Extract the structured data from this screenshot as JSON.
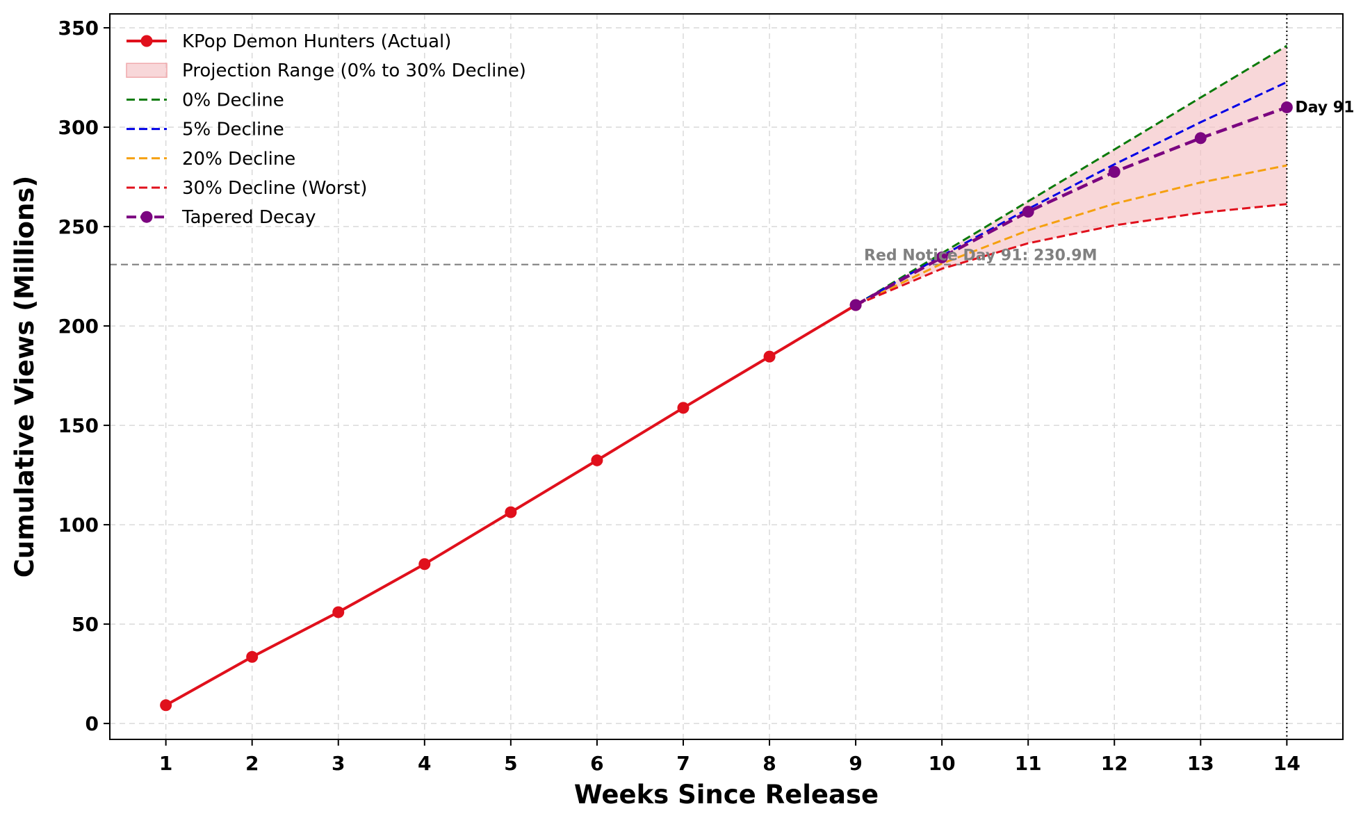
{
  "chart_data": {
    "type": "line",
    "xlabel": "Weeks Since Release",
    "ylabel": "Cumulative Views (Millions)",
    "xlim": [
      0.35,
      14.65
    ],
    "ylim": [
      -8,
      357
    ],
    "x_ticks": [
      1,
      2,
      3,
      4,
      5,
      6,
      7,
      8,
      9,
      10,
      11,
      12,
      13,
      14
    ],
    "y_ticks": [
      0,
      50,
      100,
      150,
      200,
      250,
      300,
      350
    ],
    "grid": true,
    "legend_position": "top-left",
    "series": [
      {
        "name": "KPop Demon Hunters (Actual)",
        "style": "solid-marker",
        "color": "#e0101c",
        "x": [
          1,
          2,
          3,
          4,
          5,
          6,
          7,
          8,
          9
        ],
        "values": [
          9.2,
          33.5,
          56.0,
          80.2,
          106.3,
          132.4,
          158.8,
          184.6,
          210.5
        ]
      },
      {
        "name": "0% Decline",
        "style": "dashed",
        "color": "#0b7a0b",
        "x": [
          9,
          10,
          11,
          12,
          13,
          14
        ],
        "values": [
          210.5,
          236.6,
          262.7,
          288.8,
          314.9,
          341.0
        ]
      },
      {
        "name": "5% Decline",
        "style": "dashed",
        "color": "#0000e6",
        "x": [
          9,
          10,
          11,
          12,
          13,
          14
        ],
        "values": [
          210.5,
          235.3,
          258.9,
          281.3,
          302.5,
          322.7
        ]
      },
      {
        "name": "20% Decline",
        "style": "dashed",
        "color": "#f5a00f",
        "x": [
          9,
          10,
          11,
          12,
          13,
          14
        ],
        "values": [
          210.5,
          231.4,
          248.1,
          261.5,
          272.2,
          280.8
        ]
      },
      {
        "name": "30% Decline (Worst)",
        "style": "dashed",
        "color": "#e0101c",
        "x": [
          9,
          10,
          11,
          12,
          13,
          14
        ],
        "values": [
          210.5,
          228.8,
          241.6,
          250.6,
          256.9,
          261.3
        ]
      },
      {
        "name": "Tapered Decay",
        "style": "dashed-marker",
        "color": "#7b0580",
        "x": [
          9,
          10,
          11,
          12,
          13,
          14
        ],
        "values": [
          210.5,
          234.5,
          257.5,
          277.5,
          294.5,
          310.0
        ]
      }
    ],
    "projection_range": {
      "name": "Projection Range (0% to 30% Decline)",
      "color": "#f4c2c4",
      "x": [
        9,
        10,
        11,
        12,
        13,
        14
      ],
      "upper": [
        210.5,
        236.6,
        262.7,
        288.8,
        314.9,
        341.0
      ],
      "lower": [
        210.5,
        228.8,
        241.6,
        250.6,
        256.9,
        261.3
      ]
    },
    "reference_line": {
      "y": 230.9,
      "label": "Red Notice Day 91: 230.9M",
      "color": "#808080"
    },
    "vertical_line": {
      "x": 14
    },
    "annotation": {
      "x": 14,
      "y": 310.0,
      "label": "Day 91"
    }
  }
}
